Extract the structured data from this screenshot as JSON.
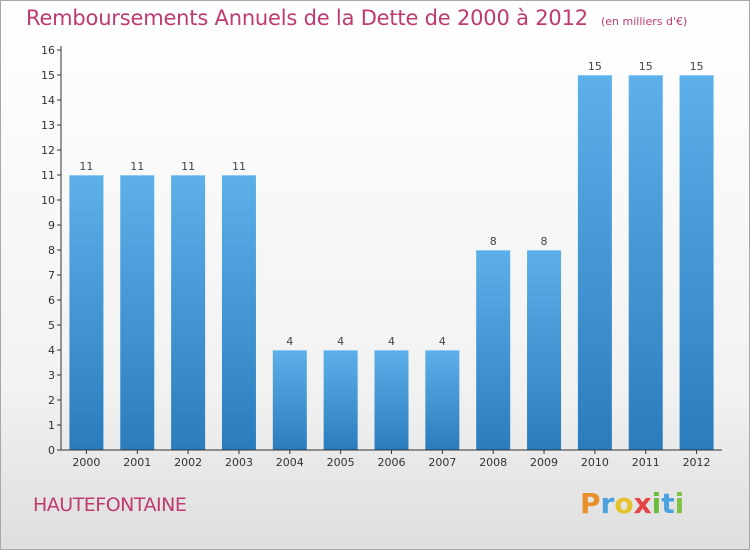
{
  "title": "Remboursements Annuels de la Dette de 2000 à 2012",
  "subtitle": "(en milliers d'€)",
  "commune": "HAUTEFONTAINE",
  "logo": {
    "letters": [
      "P",
      "r",
      "o",
      "x",
      "i",
      "t",
      "i"
    ],
    "colors": [
      "#e9902d",
      "#4aa3df",
      "#e5c22b",
      "#e54545",
      "#6dbb3a",
      "#4aa3df",
      "#7fc241"
    ]
  },
  "colors": {
    "title": "#c0396f",
    "bar_top": "#5eb0ea",
    "bar_bottom": "#2a7cbd",
    "axis": "#333333",
    "grid": "#dddddd"
  },
  "chart_data": {
    "type": "bar",
    "categories": [
      "2000",
      "2001",
      "2002",
      "2003",
      "2004",
      "2005",
      "2006",
      "2007",
      "2008",
      "2009",
      "2010",
      "2011",
      "2012"
    ],
    "values": [
      11,
      11,
      11,
      11,
      4,
      4,
      4,
      4,
      8,
      8,
      15,
      15,
      15
    ],
    "data_labels": [
      "11",
      "11",
      "11",
      "11",
      "4",
      "4",
      "4",
      "4",
      "8",
      "8",
      "15",
      "15",
      "15"
    ],
    "ylim": [
      0,
      16
    ],
    "yticks": [
      "0",
      "1",
      "2",
      "3",
      "4",
      "5",
      "6",
      "7",
      "8",
      "9",
      "10",
      "11",
      "12",
      "13",
      "14",
      "15",
      "16"
    ],
    "xlabel": "",
    "ylabel": "",
    "grid": false,
    "legend": "none"
  }
}
